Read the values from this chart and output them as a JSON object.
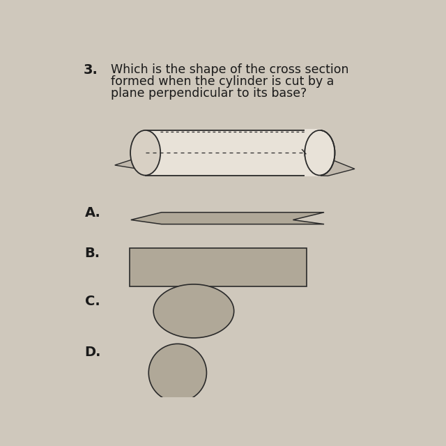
{
  "background_color": "#cfc8bc",
  "question_number": "3.",
  "question_text_line1": "Which is the shape of the cross section",
  "question_text_line2": "formed when the cylinder is cut by a",
  "question_text_line3": "plane perpendicular to its base?",
  "shape_fill": "#b0a898",
  "shape_edge": "#2a2a2a",
  "text_color": "#1a1a1a",
  "font_size_question": 12.5,
  "font_size_options": 14,
  "font_size_number": 14,
  "cyl_fill": "#e8e2d8",
  "cyl_edge": "#2a2a2a",
  "plane_fill": "#c0b8ac"
}
